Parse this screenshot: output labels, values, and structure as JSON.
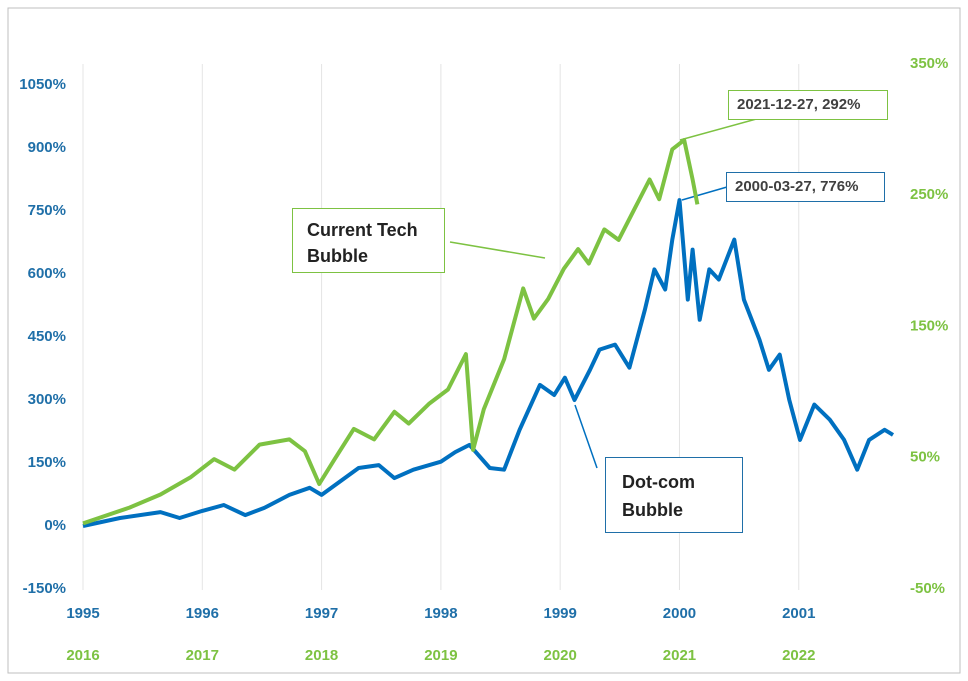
{
  "chart_data": {
    "type": "line",
    "xlim": [
      1995,
      2001.79
    ],
    "xticks": [
      1995,
      1996,
      1997,
      1998,
      1999,
      2000,
      2001
    ],
    "x2lim": [
      2016,
      2022.79
    ],
    "x2ticks": [
      2016,
      2017,
      2018,
      2019,
      2020,
      2021,
      2022
    ],
    "ylim": [
      -150,
      1100
    ],
    "yticks": [
      {
        "value": -150,
        "label": "-150%"
      },
      {
        "value": 0,
        "label": "0%"
      },
      {
        "value": 150,
        "label": "150%"
      },
      {
        "value": 300,
        "label": "300%"
      },
      {
        "value": 450,
        "label": "450%"
      },
      {
        "value": 600,
        "label": "600%"
      },
      {
        "value": 750,
        "label": "750%"
      },
      {
        "value": 900,
        "label": "900%"
      },
      {
        "value": 1050,
        "label": "1050%"
      }
    ],
    "y2lim": [
      -50,
      350
    ],
    "y2ticks": [
      {
        "value": -50,
        "label": "-50%"
      },
      {
        "value": 50,
        "label": "50%"
      },
      {
        "value": 150,
        "label": "150%"
      },
      {
        "value": 250,
        "label": "250%"
      },
      {
        "value": 350,
        "label": "350%"
      }
    ],
    "grid": true,
    "series": [
      {
        "name": "Dot-com Bubble",
        "color": "#0070c0",
        "xaxis": "x",
        "axis": "y",
        "x": [
          1995.0,
          1995.31,
          1995.65,
          1995.81,
          1996.0,
          1996.18,
          1996.36,
          1996.52,
          1996.73,
          1996.9,
          1997.0,
          1997.15,
          1997.31,
          1997.48,
          1997.61,
          1997.77,
          1998.0,
          1998.12,
          1998.24,
          1998.41,
          1998.53,
          1998.66,
          1998.83,
          1998.95,
          1999.04,
          1999.12,
          1999.25,
          1999.33,
          1999.46,
          1999.58,
          1999.71,
          1999.79,
          1999.88,
          1999.94,
          2000.0,
          2000.07,
          2000.11,
          2000.17,
          2000.25,
          2000.33,
          2000.46,
          2000.54,
          2000.67,
          2000.75,
          2000.84,
          2000.92,
          2001.01,
          2001.13,
          2001.26,
          2001.38,
          2001.49,
          2001.59,
          2001.72,
          2001.79
        ],
        "values": [
          0,
          19,
          33,
          19,
          36,
          50,
          26,
          43,
          74,
          91,
          74,
          105,
          138,
          145,
          114,
          134,
          153,
          176,
          193,
          138,
          134,
          229,
          336,
          312,
          353,
          300,
          372,
          420,
          432,
          377,
          515,
          611,
          563,
          682,
          776,
          539,
          658,
          491,
          611,
          587,
          682,
          539,
          444,
          372,
          408,
          301,
          205,
          289,
          253,
          205,
          134,
          205,
          229,
          217
        ]
      },
      {
        "name": "Current Tech Bubble",
        "color": "#7dc242",
        "xaxis": "x2",
        "axis": "y2",
        "x": [
          2016.0,
          2016.39,
          2016.65,
          2016.9,
          2017.1,
          2017.27,
          2017.48,
          2017.73,
          2017.86,
          2017.98,
          2018.11,
          2018.27,
          2018.44,
          2018.61,
          2018.73,
          2018.9,
          2019.06,
          2019.21,
          2019.27,
          2019.36,
          2019.53,
          2019.69,
          2019.78,
          2019.9,
          2020.03,
          2020.15,
          2020.24,
          2020.37,
          2020.49,
          2020.62,
          2020.75,
          2020.83,
          2020.94,
          2021.04,
          2021.11,
          2021.15
        ],
        "values": [
          0,
          12,
          22,
          35,
          49,
          41,
          60,
          64,
          55,
          30,
          49,
          72,
          64,
          85,
          76,
          91,
          102,
          129,
          56,
          87,
          125,
          179,
          156,
          171,
          194,
          209,
          198,
          224,
          216,
          239,
          262,
          247,
          285,
          292,
          262,
          243
        ]
      }
    ],
    "annotations": [
      {
        "text": "2021-12-27, 292%"
      },
      {
        "text": "2000-03-27, 776%"
      }
    ]
  }
}
